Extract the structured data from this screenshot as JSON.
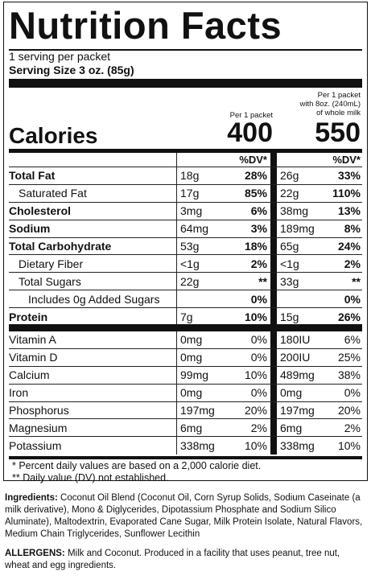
{
  "title": "Nutrition Facts",
  "servings_per_container": "1 serving per packet",
  "serving_size": "Serving Size 3 oz. (85g)",
  "col1_header": "Per 1 packet",
  "col2_header_line1": "Per 1 packet",
  "col2_header_line2": "with 8oz. (240mL)",
  "col2_header_line3": "of whole milk",
  "calories_label": "Calories",
  "calories_1": "400",
  "calories_2": "550",
  "dv_header": "%DV*",
  "nutrients": [
    {
      "name": "Total Fat",
      "amt1": "18g",
      "dv1": "28%",
      "amt2": "26g",
      "dv2": "33%"
    },
    {
      "name": "Saturated Fat",
      "amt1": "17g",
      "dv1": "85%",
      "amt2": "22g",
      "dv2": "110%"
    },
    {
      "name": "Cholesterol",
      "amt1": "3mg",
      "dv1": "6%",
      "amt2": "38mg",
      "dv2": "13%"
    },
    {
      "name": "Sodium",
      "amt1": "64mg",
      "dv1": "3%",
      "amt2": "189mg",
      "dv2": "8%"
    },
    {
      "name": "Total Carbohydrate",
      "amt1": "53g",
      "dv1": "18%",
      "amt2": "65g",
      "dv2": "24%"
    },
    {
      "name": "Dietary Fiber",
      "amt1": "<1g",
      "dv1": "2%",
      "amt2": "<1g",
      "dv2": "2%"
    },
    {
      "name": "Total Sugars",
      "amt1": "22g",
      "dv1": "**",
      "amt2": "33g",
      "dv2": "**"
    },
    {
      "name": "Includes 0g Added Sugars",
      "amt1": "",
      "dv1": "0%",
      "amt2": "",
      "dv2": "0%"
    },
    {
      "name": "Protein",
      "amt1": "7g",
      "dv1": "10%",
      "amt2": "15g",
      "dv2": "26%"
    }
  ],
  "vitamins": [
    {
      "name": "Vitamin A",
      "amt1": "0mg",
      "dv1": "0%",
      "amt2": "180IU",
      "dv2": "6%"
    },
    {
      "name": "Vitamin D",
      "amt1": "0mg",
      "dv1": "0%",
      "amt2": "200IU",
      "dv2": "25%"
    },
    {
      "name": "Calcium",
      "amt1": "99mg",
      "dv1": "10%",
      "amt2": "489mg",
      "dv2": "38%"
    },
    {
      "name": "Iron",
      "amt1": "0mg",
      "dv1": "0%",
      "amt2": "0mg",
      "dv2": "0%"
    },
    {
      "name": "Phosphorus",
      "amt1": "197mg",
      "dv1": "20%",
      "amt2": "197mg",
      "dv2": "20%"
    },
    {
      "name": "Magnesium",
      "amt1": "6mg",
      "dv1": "2%",
      "amt2": "6mg",
      "dv2": "2%"
    },
    {
      "name": "Potassium",
      "amt1": "338mg",
      "dv1": "10%",
      "amt2": "338mg",
      "dv2": "10%"
    }
  ],
  "footnote_1": "* Percent daily values are based on a 2,000 calorie diet.",
  "footnote_2": "** Daily value (DV) not established.",
  "ingredients_label": "Ingredients:",
  "ingredients_text": "Coconut Oil Blend (Coconut Oil, Corn Syrup Solids, Sodium Caseinate (a milk derivative), Mono & Diglycerides, Dipotassium Phosphate and Sodium Silico Aluminate), Maltodextrin, Evaporated Cane Sugar, Milk Protein Isolate, Natural Flavors, Medium Chain Triglycerides, Sunflower Lecithin",
  "allergens_label": "ALLERGENS:",
  "allergens_text": "Milk and Coconut. Produced in a facility that uses peanut, tree nut, wheat and egg ingredients."
}
